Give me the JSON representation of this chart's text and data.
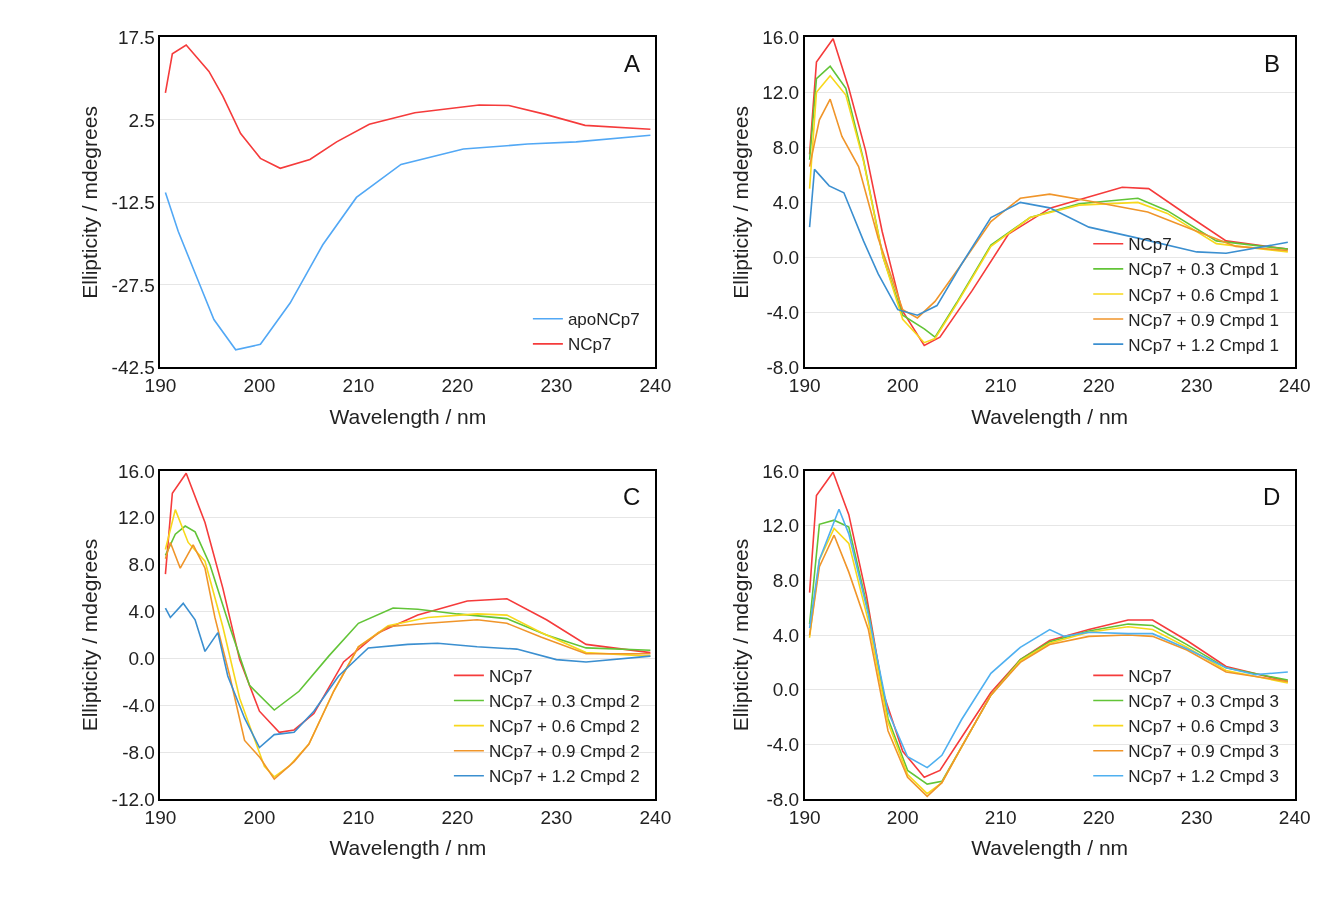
{
  "chart_data": [
    {
      "type": "line",
      "xlabel": "Wavelength / nm",
      "ylabel": "Ellipticity / mdegrees",
      "annotations": [
        "A"
      ],
      "xlim": [
        190,
        240
      ],
      "xticks": [
        190,
        200,
        210,
        220,
        230,
        240
      ],
      "ylim": [
        -42.5,
        17.5
      ],
      "yticks": [
        17.5,
        2.5,
        -12.5,
        -27.5,
        -42.5
      ],
      "grid": "y",
      "legend": "bottom right",
      "line_style": "solid",
      "marker": "none",
      "series": [
        {
          "name": "apoNCp7",
          "color": "#52a8f5",
          "x": [
            190.5,
            191.8,
            193.8,
            195.4,
            197.6,
            200.1,
            203.1,
            206.4,
            209.8,
            214.3,
            220.6,
            227.1,
            232,
            239.5
          ],
          "values": [
            -10.7,
            -17.8,
            -26.7,
            -33.8,
            -39.3,
            -38.3,
            -30.8,
            -20.2,
            -11.6,
            -5.6,
            -2.8,
            -1.9,
            -1.5,
            -0.3
          ]
        },
        {
          "name": "NCp7",
          "color": "#f53b3b",
          "x": [
            190.5,
            191.2,
            192.6,
            194.9,
            196.3,
            198.1,
            200.1,
            202.1,
            205.1,
            207.8,
            211.1,
            215.7,
            222.2,
            225.2,
            228.9,
            232.9,
            239.5
          ],
          "values": [
            7.4,
            14.5,
            16.1,
            11.3,
            6.8,
            0,
            -4.5,
            -6.3,
            -4.7,
            -1.5,
            1.7,
            3.8,
            5.2,
            5.1,
            3.5,
            1.5,
            0.8
          ]
        }
      ]
    },
    {
      "type": "line",
      "xlabel": "Wavelength / nm",
      "ylabel": "Ellipticity / mdegrees",
      "annotations": [
        "B"
      ],
      "xlim": [
        190,
        240
      ],
      "xticks": [
        190,
        200,
        210,
        220,
        230,
        240
      ],
      "ylim": [
        -8,
        16
      ],
      "yticks": [
        {
          "value": 16,
          "label": "16.0"
        },
        {
          "value": 12,
          "label": "12.0"
        },
        {
          "value": 8,
          "label": "8.0"
        },
        {
          "value": 4,
          "label": "4.0"
        },
        {
          "value": 0,
          "label": "0.0"
        },
        {
          "value": -4,
          "label": "-4.0"
        },
        {
          "value": -8,
          "label": "-8.0"
        }
      ],
      "grid": "y",
      "legend": "bottom right",
      "line_style": "solid",
      "marker": "none",
      "series": [
        {
          "name": "NCp7",
          "color": "#f53b3b",
          "x": [
            190.5,
            191.2,
            192.9,
            194.5,
            196.2,
            197.9,
            199.9,
            202.2,
            203.8,
            207.1,
            210.8,
            215.1,
            222.4,
            225.1,
            229,
            233,
            239.3
          ],
          "values": [
            7.5,
            14.2,
            15.9,
            12.3,
            7.8,
            1.9,
            -3.8,
            -6.4,
            -5.8,
            -2.4,
            1.7,
            3.6,
            5.1,
            5.0,
            3.1,
            1.2,
            0.6
          ]
        },
        {
          "name": "NCp7 + 0.3 Cmpd 1",
          "color": "#62c437",
          "x": [
            190.5,
            191.2,
            192.6,
            194.2,
            196,
            198,
            200,
            202.2,
            203.3,
            205.5,
            209,
            213,
            218,
            224,
            227,
            232,
            239.3
          ],
          "values": [
            7.1,
            13.0,
            13.9,
            12.3,
            7.1,
            0.0,
            -4.2,
            -5.2,
            -5.8,
            -3.3,
            0.9,
            2.9,
            3.9,
            4.3,
            3.4,
            1.2,
            0.6
          ]
        },
        {
          "name": "NCp7 + 0.6 Cmpd 1",
          "color": "#f7d81c",
          "x": [
            190.5,
            191.2,
            192.6,
            194.2,
            196,
            198,
            200,
            202.2,
            203.3,
            205.5,
            209,
            213,
            218,
            224,
            227,
            232,
            239.3
          ],
          "values": [
            5.0,
            12.0,
            13.2,
            11.8,
            7.0,
            0.0,
            -4.5,
            -6.2,
            -5.9,
            -3.4,
            0.8,
            2.9,
            3.8,
            4.0,
            3.2,
            1.0,
            0.4
          ]
        },
        {
          "name": "NCp7 + 0.9 Cmpd 1",
          "color": "#f0952a",
          "x": [
            190.5,
            191.5,
            192.6,
            193.8,
            195.5,
            197.5,
            200,
            201.5,
            203.3,
            206,
            209,
            212,
            215,
            219,
            225,
            230,
            234,
            239.3
          ],
          "values": [
            6.6,
            10.0,
            11.5,
            8.8,
            6.6,
            1.4,
            -3.8,
            -4.4,
            -3.2,
            -0.5,
            2.6,
            4.3,
            4.6,
            4.1,
            3.3,
            1.9,
            0.8,
            0.5
          ]
        },
        {
          "name": "NCp7 + 1.2 Cmpd 1",
          "color": "#3b8fd0",
          "x": [
            190.5,
            191,
            192.5,
            194,
            196,
            197.5,
            199.5,
            201.5,
            203.5,
            206,
            209,
            212,
            215,
            219,
            224,
            230,
            233,
            239.3
          ],
          "values": [
            2.2,
            6.4,
            5.2,
            4.7,
            1.2,
            -1.2,
            -3.8,
            -4.2,
            -3.5,
            -0.5,
            2.9,
            4.0,
            3.6,
            2.2,
            1.4,
            0.4,
            0.3,
            1.1
          ]
        }
      ]
    },
    {
      "type": "line",
      "xlabel": "Wavelength / nm",
      "ylabel": "Ellipticity / mdegrees",
      "annotations": [
        "C"
      ],
      "xlim": [
        190,
        240
      ],
      "xticks": [
        190,
        200,
        210,
        220,
        230,
        240
      ],
      "ylim": [
        -12,
        16
      ],
      "yticks": [
        {
          "value": 16,
          "label": "16.0"
        },
        {
          "value": 12,
          "label": "12.0"
        },
        {
          "value": 8,
          "label": "8.0"
        },
        {
          "value": 4,
          "label": "4.0"
        },
        {
          "value": 0,
          "label": "0.0"
        },
        {
          "value": -4,
          "label": "-4.0"
        },
        {
          "value": -8,
          "label": "-8.0"
        },
        {
          "value": -12,
          "label": "-12.0"
        }
      ],
      "grid": "y",
      "legend": "bottom right",
      "line_style": "solid",
      "marker": "none",
      "series": [
        {
          "name": "NCp7",
          "color": "#f53b3b",
          "x": [
            190.5,
            191.2,
            192.6,
            194.5,
            196.3,
            198,
            200,
            202,
            203.5,
            205.5,
            208.5,
            212,
            216,
            221,
            225,
            229,
            233,
            239.5
          ],
          "values": [
            7.2,
            14.1,
            15.8,
            11.6,
            6.0,
            -0.1,
            -4.5,
            -6.3,
            -6.1,
            -4.7,
            -0.3,
            2.2,
            3.7,
            4.9,
            5.1,
            3.3,
            1.2,
            0.5
          ]
        },
        {
          "name": "NCp7 + 0.3 Cmpd 2",
          "color": "#62c437",
          "x": [
            190.5,
            191.5,
            192.5,
            193.5,
            195,
            197,
            199,
            201.5,
            204,
            207,
            210,
            213.5,
            216,
            220,
            225,
            229,
            233,
            239.5
          ],
          "values": [
            8.8,
            10.6,
            11.3,
            10.8,
            8.0,
            2.7,
            -2.3,
            -4.4,
            -2.8,
            0.2,
            3.0,
            4.3,
            4.2,
            3.8,
            3.4,
            2.0,
            0.9,
            0.7
          ]
        },
        {
          "name": "NCp7 + 0.6 Cmpd 2",
          "color": "#f7d81c",
          "x": [
            190.5,
            191.5,
            192.8,
            194.5,
            196.3,
            198,
            200.5,
            201.5,
            203,
            205,
            207.5,
            210,
            213,
            217,
            222,
            225,
            228.5,
            233,
            239.5
          ],
          "values": [
            9.3,
            12.7,
            9.9,
            8.3,
            2.7,
            -3.4,
            -9.2,
            -10.1,
            -9.2,
            -7.3,
            -2.8,
            1.0,
            2.8,
            3.5,
            3.8,
            3.7,
            2.2,
            0.5,
            0.2
          ]
        },
        {
          "name": "NCp7 + 0.9 Cmpd 2",
          "color": "#f0952a",
          "x": [
            190.5,
            191,
            192,
            193.3,
            194.5,
            195.5,
            197,
            198.5,
            200,
            201.5,
            203.5,
            205,
            207.5,
            210,
            213,
            217,
            222,
            225,
            228.5,
            233,
            239.5
          ],
          "values": [
            8.5,
            9.9,
            7.7,
            9.7,
            7.7,
            3.5,
            -1.5,
            -7.0,
            -8.4,
            -10.3,
            -8.8,
            -7.3,
            -2.8,
            1.0,
            2.7,
            3.0,
            3.3,
            3.0,
            1.8,
            0.4,
            0.4
          ]
        },
        {
          "name": "NCp7 + 1.2 Cmpd 2",
          "color": "#3b8fd0",
          "x": [
            190.5,
            191,
            192.3,
            193.5,
            194.5,
            195.8,
            196.8,
            198.5,
            200,
            201.5,
            203.5,
            205.5,
            208,
            211,
            215,
            218,
            222,
            226,
            230,
            233,
            239.5
          ],
          "values": [
            4.3,
            3.5,
            4.7,
            3.3,
            0.6,
            2.2,
            -1.5,
            -5.1,
            -7.6,
            -6.5,
            -6.3,
            -4.5,
            -1.5,
            0.9,
            1.2,
            1.3,
            1.0,
            0.8,
            -0.1,
            -0.3,
            0.2
          ]
        }
      ]
    },
    {
      "type": "line",
      "xlabel": "Wavelength / nm",
      "ylabel": "Ellipticity / mdegrees",
      "annotations": [
        "D"
      ],
      "xlim": [
        190,
        240
      ],
      "xticks": [
        190,
        200,
        210,
        220,
        230,
        240
      ],
      "ylim": [
        -8,
        16
      ],
      "yticks": [
        {
          "value": 16,
          "label": "16.0"
        },
        {
          "value": 12,
          "label": "12.0"
        },
        {
          "value": 8,
          "label": "8.0"
        },
        {
          "value": 4,
          "label": "4.0"
        },
        {
          "value": 0,
          "label": "0.0"
        },
        {
          "value": -4,
          "label": "-4.0"
        },
        {
          "value": -8,
          "label": "-8.0"
        }
      ],
      "grid": "y",
      "legend": "bottom right",
      "line_style": "solid",
      "marker": "none",
      "series": [
        {
          "name": "NCp7",
          "color": "#f53b3b",
          "x": [
            190.5,
            191.2,
            192.9,
            194.5,
            196.3,
            198,
            200,
            202.2,
            203.8,
            206,
            209,
            212,
            215,
            219,
            223,
            225.5,
            229,
            233,
            239.3
          ],
          "values": [
            7.1,
            14.2,
            15.9,
            12.8,
            6.9,
            -0.2,
            -4.5,
            -6.4,
            -5.9,
            -3.5,
            -0.2,
            2.2,
            3.6,
            4.4,
            5.1,
            5.1,
            3.6,
            1.7,
            0.6
          ]
        },
        {
          "name": "NCp7 + 0.3 Cmpd 3",
          "color": "#62c437",
          "x": [
            190.5,
            191.5,
            193,
            194.5,
            196.5,
            198.5,
            200.5,
            202.5,
            204,
            206,
            209,
            212,
            215,
            219,
            223,
            225.5,
            229,
            233,
            239.3
          ],
          "values": [
            4.8,
            12.1,
            12.4,
            11.9,
            5.7,
            -2.1,
            -5.9,
            -6.9,
            -6.7,
            -4.2,
            -0.4,
            2.2,
            3.5,
            4.3,
            4.8,
            4.7,
            3.3,
            1.6,
            0.7
          ]
        },
        {
          "name": "NCp7 + 0.6 Cmpd 3",
          "color": "#f7d81c",
          "x": [
            190.5,
            191.5,
            193,
            194.5,
            196.5,
            198.5,
            200.5,
            202.5,
            204,
            206,
            209,
            212,
            215,
            219,
            223,
            225.5,
            229,
            233,
            239.3
          ],
          "values": [
            3.8,
            9.5,
            11.8,
            10.7,
            5.0,
            -2.4,
            -6.2,
            -7.6,
            -6.8,
            -4.2,
            -0.4,
            2.1,
            3.4,
            4.2,
            4.6,
            4.4,
            3.1,
            1.4,
            0.5
          ]
        },
        {
          "name": "NCp7 + 0.9 Cmpd 3",
          "color": "#f0952a",
          "x": [
            190.5,
            191.5,
            193,
            194.5,
            196.5,
            198.5,
            200.5,
            202.5,
            204,
            206,
            209,
            212,
            215,
            219,
            223,
            225.5,
            229,
            233,
            239.3
          ],
          "values": [
            4.0,
            9.0,
            11.3,
            8.6,
            4.4,
            -3.0,
            -6.4,
            -7.8,
            -6.8,
            -4.2,
            -0.4,
            2.0,
            3.3,
            3.9,
            4.0,
            3.9,
            2.9,
            1.3,
            0.6
          ]
        },
        {
          "name": "NCp7 + 1.2 Cmpd 3",
          "color": "#4fb0f0",
          "x": [
            190.5,
            191.5,
            193.5,
            194.5,
            196.5,
            198.5,
            200.5,
            202.5,
            204,
            206,
            209,
            212,
            215,
            216.5,
            219,
            223,
            225.5,
            229,
            233,
            236,
            239.3
          ],
          "values": [
            4.5,
            9.5,
            13.2,
            11.4,
            5.5,
            -1.6,
            -4.9,
            -5.7,
            -4.8,
            -2.2,
            1.2,
            3.1,
            4.4,
            3.9,
            4.2,
            4.1,
            4.1,
            3.0,
            1.6,
            1.1,
            1.3
          ]
        }
      ]
    }
  ]
}
